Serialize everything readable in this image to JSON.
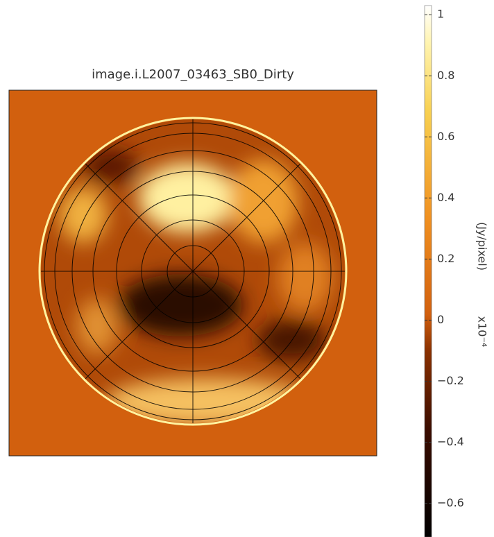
{
  "chart_data": {
    "type": "image",
    "title": "image.i.L2007_03463_SB0_Dirty",
    "colorbar_label": "(Jy/pixel)",
    "colorbar_scale": "x10⁻⁴",
    "ylim": [
      -0.71,
      1.03
    ],
    "yticks": [
      {
        "value": -0.6,
        "label": "−0.6"
      },
      {
        "value": -0.4,
        "label": "−0.4"
      },
      {
        "value": -0.2,
        "label": "−0.2"
      },
      0,
      0.2,
      0.4,
      0.6,
      0.8,
      1
    ]
  }
}
